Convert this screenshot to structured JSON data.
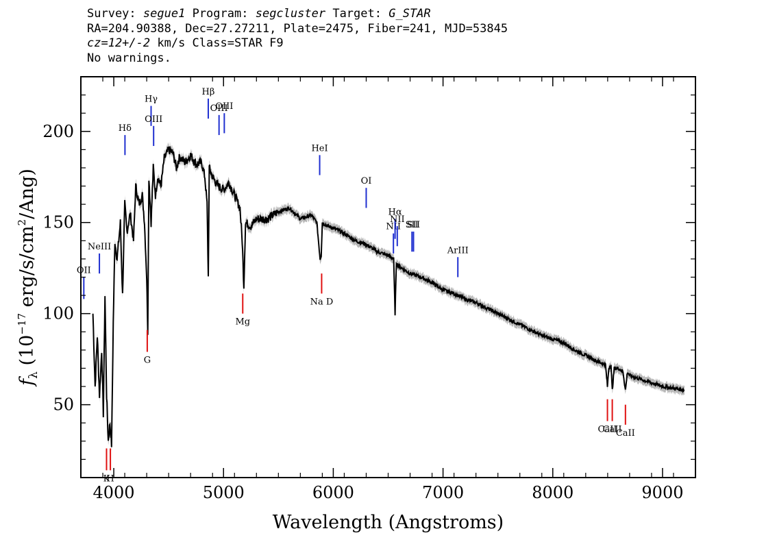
{
  "header": {
    "survey_label": "Survey:",
    "survey": "segue1",
    "program_label": "Program:",
    "program": "segcluster",
    "target_label": "Target:",
    "target": "G_STAR",
    "line2": "RA=204.90388, Dec=27.27211, Plate=2475, Fiber=241, MJD=53845",
    "cz": "cz=12+/-2",
    "cz_rest": " km/s Class=STAR F9",
    "warnings": "No warnings."
  },
  "chart_data": {
    "type": "line",
    "xlabel": "Wavelength (Angstroms)",
    "ylabel": "f_λ (10^-17 erg/s/cm^2/Ang)",
    "ylabel_parts": {
      "f": "f",
      "lambda": "λ",
      "pre": "(10",
      "exp": "−17",
      "mid": " erg/s/cm",
      "exp2": "2",
      "post": "/Ang)"
    },
    "xlim": [
      3700,
      9300
    ],
    "ylim": [
      10,
      230
    ],
    "xticks": [
      4000,
      5000,
      6000,
      7000,
      8000,
      9000
    ],
    "xtick_labels": [
      "4000",
      "5000",
      "6000",
      "7000",
      "8000",
      "9000"
    ],
    "yticks": [
      50,
      100,
      150,
      200
    ],
    "ytick_labels": [
      "50",
      "100",
      "150",
      "200"
    ],
    "colors": {
      "spectrum": "#000000",
      "error": "#b8b8b8",
      "emission": "#1f2fd0",
      "absorption": "#e01010"
    },
    "spectrum": {
      "x": [
        3810,
        3830,
        3850,
        3870,
        3890,
        3905,
        3920,
        3935,
        3950,
        3965,
        3980,
        3995,
        4010,
        4030,
        4060,
        4080,
        4100,
        4120,
        4150,
        4180,
        4200,
        4230,
        4260,
        4280,
        4300,
        4310,
        4320,
        4340,
        4360,
        4380,
        4400,
        4430,
        4460,
        4500,
        4540,
        4570,
        4600,
        4650,
        4700,
        4750,
        4800,
        4830,
        4850,
        4861,
        4870,
        4900,
        4950,
        5000,
        5050,
        5100,
        5150,
        5170,
        5185,
        5200,
        5250,
        5300,
        5400,
        5500,
        5600,
        5700,
        5800,
        5850,
        5880,
        5890,
        5900,
        5950,
        6000,
        6100,
        6200,
        6300,
        6400,
        6500,
        6550,
        6563,
        6575,
        6600,
        6700,
        6800,
        6900,
        7000,
        7100,
        7200,
        7300,
        7400,
        7500,
        7600,
        7700,
        7800,
        7900,
        8000,
        8100,
        8200,
        8300,
        8400,
        8480,
        8498,
        8510,
        8530,
        8542,
        8560,
        8600,
        8640,
        8662,
        8680,
        8700,
        8800,
        8900,
        9000,
        9100,
        9200
      ],
      "y": [
        100,
        60,
        88,
        55,
        80,
        45,
        110,
        55,
        30,
        40,
        28,
        95,
        140,
        130,
        150,
        110,
        160,
        145,
        155,
        140,
        170,
        160,
        165,
        150,
        120,
        90,
        175,
        150,
        180,
        165,
        175,
        170,
        185,
        190,
        188,
        180,
        186,
        183,
        187,
        182,
        183,
        175,
        160,
        120,
        180,
        175,
        170,
        168,
        172,
        165,
        158,
        140,
        115,
        150,
        148,
        152,
        152,
        156,
        158,
        152,
        154,
        150,
        130,
        132,
        150,
        148,
        147,
        144,
        140,
        138,
        134,
        132,
        130,
        100,
        128,
        126,
        122,
        120,
        117,
        113,
        111,
        108,
        106,
        103,
        100,
        97,
        94,
        91,
        88,
        86,
        84,
        80,
        77,
        74,
        72,
        60,
        70,
        72,
        58,
        70,
        70,
        68,
        58,
        68,
        66,
        64,
        62,
        60,
        59,
        58
      ]
    },
    "emission_lines": [
      {
        "label": "OII",
        "x": 3727,
        "y0": 108,
        "y1": 120
      },
      {
        "label": "NeIII",
        "x": 3869,
        "y0": 122,
        "y1": 133
      },
      {
        "label": "Hδ",
        "x": 4102,
        "y0": 187,
        "y1": 198
      },
      {
        "label": "Hγ",
        "x": 4340,
        "y0": 203,
        "y1": 214
      },
      {
        "label": "OIII",
        "x": 4363,
        "y0": 192,
        "y1": 203
      },
      {
        "label": "Hβ",
        "x": 4861,
        "y0": 207,
        "y1": 218
      },
      {
        "label": "OIII",
        "x": 4959,
        "y0": 198,
        "y1": 209
      },
      {
        "label": "OIII",
        "x": 5007,
        "y0": 199,
        "y1": 210
      },
      {
        "label": "HeI",
        "x": 5876,
        "y0": 176,
        "y1": 187
      },
      {
        "label": "OI",
        "x": 6300,
        "y0": 158,
        "y1": 169
      },
      {
        "label": "NII",
        "x": 6548,
        "y0": 133,
        "y1": 144
      },
      {
        "label": "Hα",
        "x": 6563,
        "y0": 141,
        "y1": 152
      },
      {
        "label": "NII",
        "x": 6583,
        "y0": 137,
        "y1": 148
      },
      {
        "label": "SII",
        "x": 6717,
        "y0": 134,
        "y1": 145
      },
      {
        "label": "SII",
        "x": 6731,
        "y0": 134,
        "y1": 145
      },
      {
        "label": "ArIII",
        "x": 7135,
        "y0": 120,
        "y1": 131
      }
    ],
    "absorption_lines": [
      {
        "label": "K",
        "x": 3934,
        "y0": 14,
        "y1": 26
      },
      {
        "label": "H",
        "x": 3969,
        "y0": 14,
        "y1": 26
      },
      {
        "label": "G",
        "x": 4305,
        "y0": 79,
        "y1": 91
      },
      {
        "label": "Mg",
        "x": 5175,
        "y0": 100,
        "y1": 111
      },
      {
        "label": "Na D",
        "x": 5894,
        "y0": 111,
        "y1": 122
      },
      {
        "label": "CaII",
        "x": 8498,
        "y0": 41,
        "y1": 53
      },
      {
        "label": "CaII",
        "x": 8542,
        "y0": 41,
        "y1": 53
      },
      {
        "label": "CaII",
        "x": 8662,
        "y0": 39,
        "y1": 50
      }
    ]
  }
}
